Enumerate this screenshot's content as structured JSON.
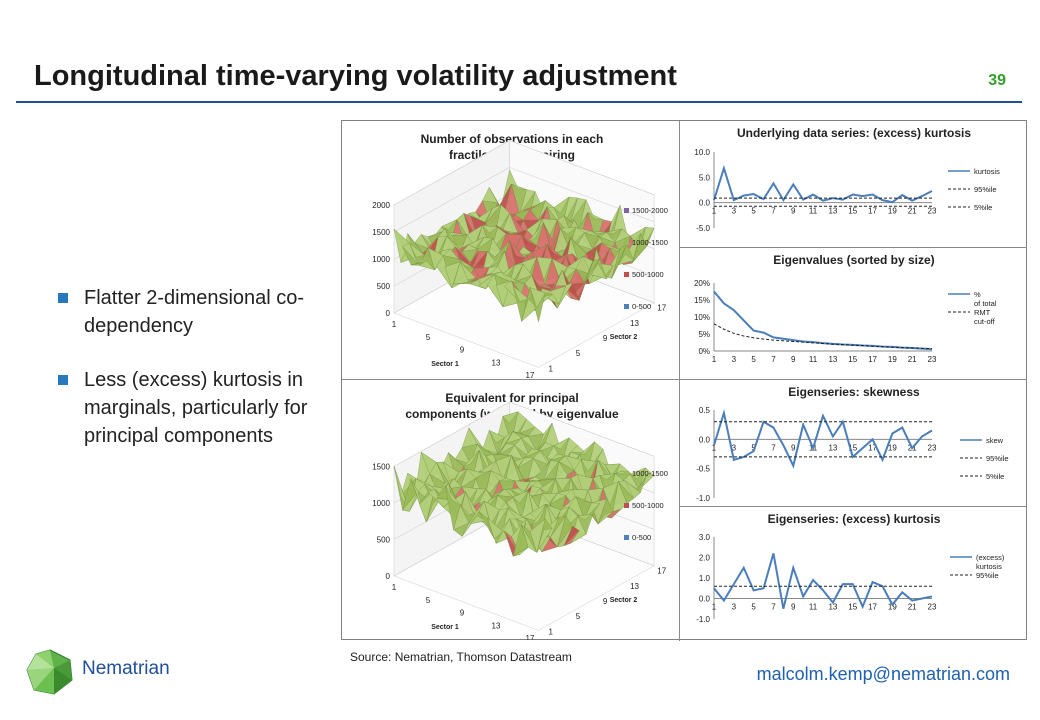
{
  "slide": {
    "title": "Longitudinal time-varying volatility adjustment",
    "page_number": "39",
    "bullets": [
      "Flatter 2-dimensional co-dependency",
      "Less (excess) kurtosis in marginals, particularly for principal components"
    ],
    "source": "Source: Nematrian, Thomson Datastream",
    "brand": "Nematrian",
    "email": "malcolm.kemp@nematrian.com"
  },
  "chart_data": [
    {
      "type": "surface3d",
      "title": "Number of observations in each fractile-fractile pairing",
      "z_ticks": [
        "0",
        "500",
        "1000",
        "1500",
        "2000"
      ],
      "x_ticks": [
        "1",
        "5",
        "9",
        "13",
        "17"
      ],
      "y_ticks": [
        "1",
        "5",
        "9",
        "13",
        "17"
      ],
      "xlabel": "Sector 1",
      "ylabel": "Sector 2",
      "legend": [
        {
          "label": "1500-2000",
          "color": "#8064a2"
        },
        {
          "label": "1000-1500",
          "color": "#9bbb59"
        },
        {
          "label": "500-1000",
          "color": "#c0504d"
        },
        {
          "label": "0-500",
          "color": "#4f81bd"
        }
      ]
    },
    {
      "type": "surface3d",
      "title": "Equivalent for principal components (weighted by eigenvalue size)",
      "z_ticks": [
        "0",
        "500",
        "1000",
        "1500"
      ],
      "x_ticks": [
        "1",
        "5",
        "9",
        "13",
        "17"
      ],
      "y_ticks": [
        "1",
        "5",
        "9",
        "13",
        "17"
      ],
      "xlabel": "Sector 1",
      "ylabel": "Sector 2",
      "legend": [
        {
          "label": "1000-1500",
          "color": "#9bbb59"
        },
        {
          "label": "500-1000",
          "color": "#c0504d"
        },
        {
          "label": "0-500",
          "color": "#4f81bd"
        }
      ]
    },
    {
      "type": "line",
      "title": "Underlying data series: (excess) kurtosis",
      "y_ticks": [
        "-5.0",
        "0.0",
        "5.0",
        "10.0"
      ],
      "ylim": [
        -5,
        10
      ],
      "x_ticks": [
        "1",
        "3",
        "5",
        "7",
        "9",
        "11",
        "13",
        "15",
        "17",
        "19",
        "21",
        "23"
      ],
      "series": [
        {
          "name": "kurtosis",
          "style": "solid",
          "values": [
            0.5,
            6.8,
            0.5,
            1.4,
            1.7,
            0.7,
            3.8,
            0.5,
            3.6,
            0.6,
            1.6,
            0.4,
            0.9,
            0.6,
            1.6,
            1.3,
            1.6,
            0.5,
            0.1,
            1.5,
            0.4,
            1.3,
            2.3
          ]
        },
        {
          "name": "95%ile",
          "style": "dashed",
          "values": [
            0.9
          ]
        },
        {
          "name": "5%ile",
          "style": "dashed",
          "values": [
            -0.7
          ]
        }
      ]
    },
    {
      "type": "line",
      "title": "Eigenvalues (sorted by size)",
      "y_ticks": [
        "0%",
        "5%",
        "10%",
        "15%",
        "20%"
      ],
      "ylim": [
        0,
        20
      ],
      "x_ticks": [
        "1",
        "3",
        "5",
        "7",
        "9",
        "11",
        "13",
        "15",
        "17",
        "19",
        "21",
        "23"
      ],
      "series": [
        {
          "name": "% of total",
          "style": "solid",
          "values": [
            17.5,
            14,
            12,
            9,
            6,
            5.4,
            4,
            3.6,
            3.2,
            2.8,
            2.6,
            2.3,
            2.1,
            1.9,
            1.8,
            1.6,
            1.5,
            1.3,
            1.2,
            1.0,
            0.9,
            0.7,
            0.5
          ]
        },
        {
          "name": "RMT cut-off",
          "style": "dashed",
          "values": [
            8,
            6.4,
            5.2,
            4.4,
            3.9,
            3.5,
            3.2,
            3.0,
            2.8,
            2.6,
            2.4,
            2.2,
            2.0,
            1.9,
            1.7,
            1.6,
            1.4,
            1.3,
            1.1,
            1.0,
            0.9,
            0.8,
            0.7
          ]
        }
      ]
    },
    {
      "type": "line",
      "title": "Eigenseries: skewness",
      "y_ticks": [
        "-1.0",
        "-0.5",
        "0.0",
        "0.5"
      ],
      "ylim": [
        -1,
        0.5
      ],
      "x_ticks": [
        "1",
        "3",
        "5",
        "7",
        "9",
        "11",
        "13",
        "15",
        "17",
        "19",
        "21",
        "23"
      ],
      "series": [
        {
          "name": "skew",
          "style": "solid",
          "values": [
            -0.1,
            0.45,
            -0.35,
            -0.3,
            -0.2,
            0.3,
            0.2,
            -0.1,
            -0.45,
            0.25,
            -0.15,
            0.4,
            0.05,
            0.3,
            -0.3,
            -0.15,
            0.0,
            -0.35,
            0.1,
            0.2,
            -0.15,
            0.05,
            0.15
          ]
        },
        {
          "name": "95%ile",
          "style": "dashed",
          "values": [
            0.3
          ]
        },
        {
          "name": "5%ile",
          "style": "dashed",
          "values": [
            -0.3
          ]
        }
      ]
    },
    {
      "type": "line",
      "title": "Eigenseries: (excess) kurtosis",
      "y_ticks": [
        "-1.0",
        "0.0",
        "1.0",
        "2.0",
        "3.0"
      ],
      "ylim": [
        -1,
        3
      ],
      "x_ticks": [
        "1",
        "3",
        "5",
        "7",
        "9",
        "11",
        "13",
        "15",
        "17",
        "19",
        "21",
        "23"
      ],
      "series": [
        {
          "name": "(excess) kurtosis",
          "style": "solid",
          "values": [
            0.5,
            -0.1,
            0.7,
            1.5,
            0.4,
            0.5,
            2.2,
            -0.5,
            1.5,
            0.1,
            0.9,
            0.4,
            -0.2,
            0.7,
            0.7,
            -0.4,
            0.8,
            0.6,
            -0.3,
            0.3,
            -0.1,
            0.0,
            0.1
          ]
        },
        {
          "name": "95%ile",
          "style": "dashed",
          "values": [
            0.6
          ]
        }
      ]
    }
  ]
}
